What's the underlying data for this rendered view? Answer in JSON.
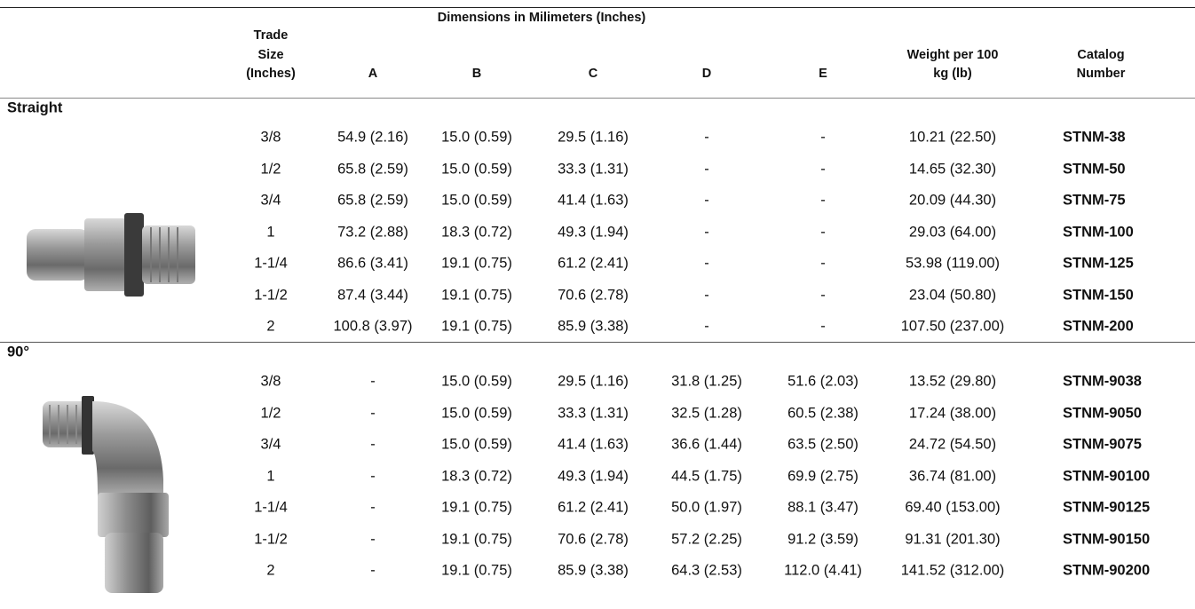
{
  "header": {
    "trade_size": [
      "Trade",
      "Size",
      "(Inches)"
    ],
    "dimensions": "Dimensions in Milimeters (Inches)",
    "columns": [
      "A",
      "B",
      "C",
      "D",
      "E"
    ],
    "weight": [
      "Weight per 100",
      "kg (lb)"
    ],
    "catalog": [
      "Catalog",
      "Number"
    ]
  },
  "sections": [
    {
      "title": "Straight",
      "rows": [
        [
          "3/8",
          "54.9 (2.16)",
          "15.0 (0.59)",
          "29.5 (1.16)",
          "-",
          "-",
          "10.21 (22.50)",
          "STNM-38"
        ],
        [
          "1/2",
          "65.8 (2.59)",
          "15.0 (0.59)",
          "33.3 (1.31)",
          "-",
          "-",
          "14.65 (32.30)",
          "STNM-50"
        ],
        [
          "3/4",
          "65.8 (2.59)",
          "15.0 (0.59)",
          "41.4 (1.63)",
          "-",
          "-",
          "20.09 (44.30)",
          "STNM-75"
        ],
        [
          "1",
          "73.2 (2.88)",
          "18.3 (0.72)",
          "49.3 (1.94)",
          "-",
          "-",
          "29.03 (64.00)",
          "STNM-100"
        ],
        [
          "1-1/4",
          "86.6 (3.41)",
          "19.1 (0.75)",
          "61.2 (2.41)",
          "-",
          "-",
          "53.98 (119.00)",
          "STNM-125"
        ],
        [
          "1-1/2",
          "87.4 (3.44)",
          "19.1 (0.75)",
          "70.6 (2.78)",
          "-",
          "-",
          "23.04 (50.80)",
          "STNM-150"
        ],
        [
          "2",
          "100.8 (3.97)",
          "19.1 (0.75)",
          "85.9 (3.38)",
          "-",
          "-",
          "107.50 (237.00)",
          "STNM-200"
        ]
      ]
    },
    {
      "title": "90°",
      "rows": [
        [
          "3/8",
          "-",
          "15.0 (0.59)",
          "29.5 (1.16)",
          "31.8 (1.25)",
          "51.6 (2.03)",
          "13.52 (29.80)",
          "STNM-9038"
        ],
        [
          "1/2",
          "-",
          "15.0 (0.59)",
          "33.3 (1.31)",
          "32.5 (1.28)",
          "60.5 (2.38)",
          "17.24 (38.00)",
          "STNM-9050"
        ],
        [
          "3/4",
          "-",
          "15.0 (0.59)",
          "41.4 (1.63)",
          "36.6 (1.44)",
          "63.5 (2.50)",
          "24.72 (54.50)",
          "STNM-9075"
        ],
        [
          "1",
          "-",
          "18.3 (0.72)",
          "49.3 (1.94)",
          "44.5 (1.75)",
          "69.9 (2.75)",
          "36.74 (81.00)",
          "STNM-90100"
        ],
        [
          "1-1/4",
          "-",
          "19.1 (0.75)",
          "61.2 (2.41)",
          "50.0 (1.97)",
          "88.1 (3.47)",
          "69.40 (153.00)",
          "STNM-90125"
        ],
        [
          "1-1/2",
          "-",
          "19.1 (0.75)",
          "70.6 (2.78)",
          "57.2 (2.25)",
          "91.2 (3.59)",
          "91.31 (201.30)",
          "STNM-90150"
        ],
        [
          "2",
          "-",
          "19.1 (0.75)",
          "85.9 (3.38)",
          "64.3 (2.53)",
          "112.0 (4.41)",
          "141.52 (312.00)",
          "STNM-90200"
        ]
      ]
    }
  ]
}
